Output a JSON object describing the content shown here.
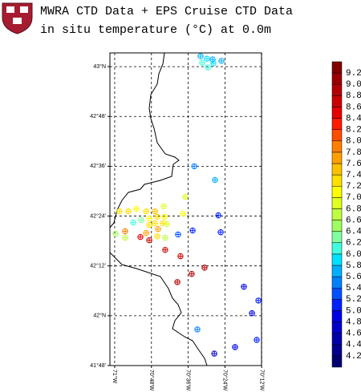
{
  "chart_data": {
    "type": "scatter",
    "title": "MWRA CTD Data + EPS Cruise CTD Data",
    "subtitle": "in situ temperature (°C) at 0.0m",
    "x": [
      -70.533,
      -70.498,
      -70.467,
      -70.419,
      -70.524,
      -70.463,
      -70.493,
      -70.567,
      -70.454,
      -70.616,
      -70.436,
      -70.629,
      -70.974,
      -70.926,
      -70.882,
      -70.829,
      -70.781,
      -70.733,
      -70.899,
      -70.856,
      -70.812,
      -70.768,
      -70.729,
      -70.781,
      -70.738,
      -70.812,
      -70.764,
      -70.716,
      -70.829,
      -70.768,
      -70.86,
      -70.943,
      -70.943,
      -70.995,
      -70.725,
      -70.812,
      -70.725,
      -70.655,
      -70.576,
      -70.423,
      -70.642,
      -70.511,
      -70.581,
      -70.659,
      -70.297,
      -70.218,
      -70.253,
      -70.55,
      -70.227,
      -70.345,
      -70.458
    ],
    "y": [
      43.042,
      43.032,
      43.029,
      43.023,
      43.016,
      43.013,
      42.997,
      42.6,
      42.545,
      42.477,
      42.403,
      42.41,
      42.419,
      42.419,
      42.429,
      42.419,
      42.419,
      42.439,
      42.374,
      42.384,
      42.39,
      42.397,
      42.397,
      42.371,
      42.371,
      42.364,
      42.348,
      42.368,
      42.332,
      42.319,
      42.316,
      42.339,
      42.313,
      42.329,
      42.313,
      42.303,
      42.264,
      42.326,
      42.342,
      42.335,
      42.239,
      42.193,
      42.168,
      42.135,
      42.116,
      42.061,
      42.01,
      41.945,
      41.903,
      41.874,
      41.848
    ],
    "values": [
      5.6,
      5.8,
      5.6,
      5.6,
      6.0,
      5.8,
      6.0,
      5.4,
      5.6,
      6.8,
      5.0,
      7.0,
      7.2,
      7.2,
      7.0,
      7.2,
      7.4,
      6.8,
      6.0,
      6.2,
      7.0,
      7.2,
      7.0,
      7.2,
      7.2,
      7.2,
      7.6,
      6.8,
      7.6,
      7.2,
      8.4,
      7.8,
      6.6,
      6.4,
      6.6,
      8.6,
      8.6,
      5.2,
      5.0,
      5.0,
      8.6,
      8.8,
      8.8,
      8.8,
      4.8,
      5.0,
      4.8,
      5.4,
      5.0,
      4.8,
      4.6
    ],
    "xlim": [
      -71.026,
      -70.201
    ],
    "ylim": [
      41.8,
      43.055
    ],
    "xticks": [
      {
        "value": -71,
        "label": "71°W"
      },
      {
        "value": -70.8,
        "label": "70°48'W"
      },
      {
        "value": -70.6,
        "label": "70°36'W"
      },
      {
        "value": -70.4,
        "label": "70°24'W"
      },
      {
        "value": -70.2,
        "label": "70°12'W"
      }
    ],
    "yticks": [
      {
        "value": 43,
        "label": "43°N"
      },
      {
        "value": 42.8,
        "label": "42°48'"
      },
      {
        "value": 42.6,
        "label": "42°36'"
      },
      {
        "value": 42.4,
        "label": "42°24'"
      },
      {
        "value": 42.2,
        "label": "42°12'"
      },
      {
        "value": 42,
        "label": "42°N"
      },
      {
        "value": 41.8,
        "label": "41°48'"
      }
    ],
    "grid": true,
    "colorbar": {
      "levels": [
        4.2,
        4.4,
        4.6,
        4.8,
        {
          "value": 5,
          "label": "5.0"
        },
        5.2,
        5.4,
        5.6,
        5.8,
        {
          "value": 6,
          "label": "6.0"
        },
        6.2,
        6.4,
        6.6,
        6.8,
        {
          "value": 7,
          "label": "7.0"
        },
        7.2,
        7.4,
        7.6,
        7.8,
        {
          "value": 8,
          "label": "8.0"
        },
        8.2,
        8.4,
        8.6,
        8.8,
        {
          "value": 9,
          "label": "9.0"
        },
        9.2
      ],
      "colors": [
        "#000070",
        "#00008c",
        "#0000aa",
        "#0000c8",
        "#0000e6",
        "#0020ff",
        "#0050ff",
        "#0080ff",
        "#00b0ff",
        "#00e0ff",
        "#40ffe0",
        "#80ffa0",
        "#a0ff60",
        "#c0ff40",
        "#e0ff20",
        "#ffff00",
        "#ffe000",
        "#ffc000",
        "#ffa000",
        "#ff8000",
        "#ff4d00",
        "#ff1a00",
        "#e60000",
        "#cc0000",
        "#b40000",
        "#9a0000",
        "#800000"
      ]
    }
  }
}
